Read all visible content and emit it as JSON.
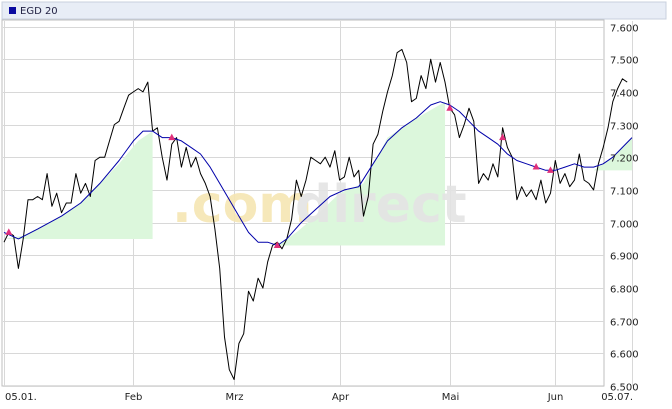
{
  "chart_data": {
    "type": "line",
    "legend": {
      "label": "EGD 20",
      "swatch_color": "#0a0aa0"
    },
    "watermark": {
      "part1": ".com",
      "part2": "direct"
    },
    "x_tick_labels": [
      "05.01.",
      "Feb",
      "Mrz",
      "Apr",
      "Mai",
      "Jun",
      "05.07."
    ],
    "y_ticks": [
      6.5,
      6.6,
      6.7,
      6.8,
      6.9,
      7.0,
      7.1,
      7.2,
      7.3,
      7.4,
      7.5,
      7.6
    ],
    "y_tick_labels": [
      "6.500",
      "6.600",
      "6.700",
      "6.800",
      "6.900",
      "7.000",
      "7.100",
      "7.200",
      "7.300",
      "7.400",
      "7.500",
      "7.600"
    ],
    "ylim": [
      6.5,
      7.62
    ],
    "grid": true,
    "x_range": [
      0,
      131
    ],
    "x_tick_positions": [
      0,
      27,
      48,
      70,
      93,
      115,
      131
    ],
    "colors": {
      "price": "#000000",
      "ema": "#0000aa",
      "fill": "#dcf7dc",
      "grid": "#d8d8d8",
      "marker": "#e0307a"
    },
    "series": [
      {
        "role": "price",
        "points": [
          [
            0,
            6.94
          ],
          [
            1,
            6.97
          ],
          [
            2,
            6.96
          ],
          [
            3,
            6.86
          ],
          [
            4,
            6.95
          ],
          [
            5,
            7.07
          ],
          [
            6,
            7.07
          ],
          [
            7,
            7.08
          ],
          [
            8,
            7.07
          ],
          [
            9,
            7.15
          ],
          [
            10,
            7.05
          ],
          [
            11,
            7.09
          ],
          [
            12,
            7.03
          ],
          [
            13,
            7.06
          ],
          [
            14,
            7.06
          ],
          [
            15,
            7.15
          ],
          [
            16,
            7.09
          ],
          [
            17,
            7.12
          ],
          [
            18,
            7.08
          ],
          [
            19,
            7.19
          ],
          [
            20,
            7.2
          ],
          [
            21,
            7.2
          ],
          [
            22,
            7.25
          ],
          [
            23,
            7.3
          ],
          [
            24,
            7.31
          ],
          [
            25,
            7.35
          ],
          [
            26,
            7.39
          ],
          [
            27,
            7.4
          ],
          [
            28,
            7.41
          ],
          [
            29,
            7.4
          ],
          [
            30,
            7.43
          ],
          [
            31,
            7.28
          ],
          [
            32,
            7.29
          ],
          [
            33,
            7.2
          ],
          [
            34,
            7.13
          ],
          [
            35,
            7.24
          ],
          [
            36,
            7.26
          ],
          [
            37,
            7.17
          ],
          [
            38,
            7.23
          ],
          [
            39,
            7.17
          ],
          [
            40,
            7.2
          ],
          [
            41,
            7.15
          ],
          [
            42,
            7.12
          ],
          [
            43,
            7.08
          ],
          [
            44,
            6.98
          ],
          [
            45,
            6.86
          ],
          [
            46,
            6.65
          ],
          [
            47,
            6.55
          ],
          [
            48,
            6.52
          ],
          [
            49,
            6.63
          ],
          [
            50,
            6.66
          ],
          [
            51,
            6.79
          ],
          [
            52,
            6.76
          ],
          [
            53,
            6.83
          ],
          [
            54,
            6.8
          ],
          [
            55,
            6.88
          ],
          [
            56,
            6.93
          ],
          [
            57,
            6.94
          ],
          [
            58,
            6.92
          ],
          [
            59,
            6.95
          ],
          [
            60,
            7.01
          ],
          [
            61,
            7.13
          ],
          [
            62,
            7.08
          ],
          [
            63,
            7.13
          ],
          [
            64,
            7.2
          ],
          [
            65,
            7.19
          ],
          [
            66,
            7.18
          ],
          [
            67,
            7.2
          ],
          [
            68,
            7.17
          ],
          [
            69,
            7.22
          ],
          [
            70,
            7.13
          ],
          [
            71,
            7.14
          ],
          [
            72,
            7.2
          ],
          [
            73,
            7.14
          ],
          [
            74,
            7.16
          ],
          [
            75,
            7.02
          ],
          [
            76,
            7.08
          ],
          [
            77,
            7.24
          ],
          [
            78,
            7.27
          ],
          [
            79,
            7.34
          ],
          [
            80,
            7.4
          ],
          [
            81,
            7.45
          ],
          [
            82,
            7.52
          ],
          [
            83,
            7.53
          ],
          [
            84,
            7.49
          ],
          [
            85,
            7.37
          ],
          [
            86,
            7.38
          ],
          [
            87,
            7.45
          ],
          [
            88,
            7.41
          ],
          [
            89,
            7.5
          ],
          [
            90,
            7.43
          ],
          [
            91,
            7.49
          ],
          [
            92,
            7.43
          ],
          [
            93,
            7.35
          ],
          [
            94,
            7.33
          ],
          [
            95,
            7.26
          ],
          [
            96,
            7.3
          ],
          [
            97,
            7.35
          ],
          [
            98,
            7.31
          ],
          [
            99,
            7.12
          ],
          [
            100,
            7.15
          ],
          [
            101,
            7.13
          ],
          [
            102,
            7.18
          ],
          [
            103,
            7.14
          ],
          [
            104,
            7.29
          ],
          [
            105,
            7.23
          ],
          [
            106,
            7.2
          ],
          [
            107,
            7.07
          ],
          [
            108,
            7.11
          ],
          [
            109,
            7.08
          ],
          [
            110,
            7.1
          ],
          [
            111,
            7.07
          ],
          [
            112,
            7.13
          ],
          [
            113,
            7.06
          ],
          [
            114,
            7.09
          ],
          [
            115,
            7.19
          ],
          [
            116,
            7.12
          ],
          [
            117,
            7.15
          ],
          [
            118,
            7.11
          ],
          [
            119,
            7.13
          ],
          [
            120,
            7.21
          ],
          [
            121,
            7.13
          ],
          [
            122,
            7.12
          ],
          [
            123,
            7.1
          ],
          [
            124,
            7.18
          ],
          [
            125,
            7.23
          ],
          [
            126,
            7.29
          ],
          [
            127,
            7.37
          ],
          [
            128,
            7.41
          ],
          [
            129,
            7.44
          ],
          [
            130,
            7.43
          ]
        ]
      },
      {
        "role": "ema",
        "points": [
          [
            0,
            6.97
          ],
          [
            3,
            6.95
          ],
          [
            7,
            6.98
          ],
          [
            12,
            7.02
          ],
          [
            16,
            7.06
          ],
          [
            20,
            7.12
          ],
          [
            24,
            7.19
          ],
          [
            27,
            7.25
          ],
          [
            29,
            7.28
          ],
          [
            31,
            7.28
          ],
          [
            33,
            7.26
          ],
          [
            35,
            7.26
          ],
          [
            37,
            7.25
          ],
          [
            39,
            7.23
          ],
          [
            41,
            7.21
          ],
          [
            43,
            7.17
          ],
          [
            45,
            7.12
          ],
          [
            47,
            7.07
          ],
          [
            49,
            7.02
          ],
          [
            51,
            6.97
          ],
          [
            53,
            6.94
          ],
          [
            55,
            6.94
          ],
          [
            57,
            6.93
          ],
          [
            59,
            6.95
          ],
          [
            62,
            7.0
          ],
          [
            65,
            7.04
          ],
          [
            68,
            7.08
          ],
          [
            71,
            7.1
          ],
          [
            74,
            7.11
          ],
          [
            77,
            7.18
          ],
          [
            80,
            7.25
          ],
          [
            83,
            7.29
          ],
          [
            86,
            7.32
          ],
          [
            89,
            7.36
          ],
          [
            91,
            7.37
          ],
          [
            93,
            7.36
          ],
          [
            95,
            7.34
          ],
          [
            97,
            7.31
          ],
          [
            99,
            7.28
          ],
          [
            101,
            7.26
          ],
          [
            103,
            7.24
          ],
          [
            105,
            7.21
          ],
          [
            107,
            7.19
          ],
          [
            109,
            7.18
          ],
          [
            111,
            7.17
          ],
          [
            113,
            7.16
          ],
          [
            115,
            7.16
          ],
          [
            117,
            7.17
          ],
          [
            119,
            7.18
          ],
          [
            121,
            7.17
          ],
          [
            123,
            7.17
          ],
          [
            125,
            7.18
          ],
          [
            127,
            7.2
          ],
          [
            129,
            7.23
          ],
          [
            131,
            7.26
          ]
        ]
      }
    ],
    "crossover_markers": [
      [
        1,
        6.97
      ],
      [
        35,
        7.26
      ],
      [
        57,
        6.93
      ],
      [
        93,
        7.35
      ],
      [
        104,
        7.26
      ],
      [
        111,
        7.17
      ],
      [
        114,
        7.16
      ]
    ],
    "shaded_regions": [
      {
        "x": [
          0,
          31
        ],
        "top": [
          [
            0,
            6.95
          ],
          [
            4,
            6.96
          ],
          [
            8,
            6.99
          ],
          [
            12,
            7.02
          ],
          [
            16,
            7.06
          ],
          [
            20,
            7.12
          ],
          [
            24,
            7.18
          ],
          [
            28,
            7.25
          ],
          [
            31,
            7.28
          ]
        ],
        "bottom": 6.95
      },
      {
        "x": [
          57,
          92
        ],
        "top": [
          [
            57,
            6.93
          ],
          [
            61,
            6.97
          ],
          [
            65,
            7.02
          ],
          [
            70,
            7.09
          ],
          [
            75,
            7.12
          ],
          [
            80,
            7.26
          ],
          [
            85,
            7.31
          ],
          [
            92,
            7.37
          ]
        ],
        "bottom": 6.93
      },
      {
        "x": [
          123,
          131
        ],
        "top": [
          [
            123,
            7.16
          ],
          [
            127,
            7.2
          ],
          [
            131,
            7.26
          ]
        ],
        "bottom": 7.16
      }
    ]
  }
}
